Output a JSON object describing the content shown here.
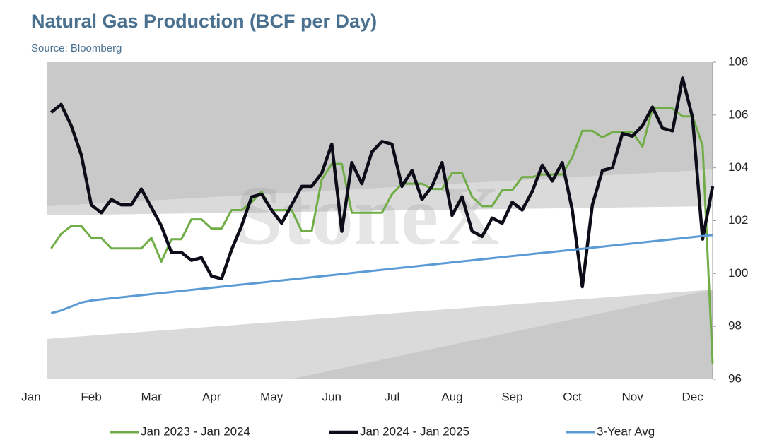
{
  "chart_data": {
    "type": "line",
    "title": "Natural Gas Production (BCF per Day)",
    "subtitle": "Source: Bloomberg",
    "watermark": "StoneX",
    "categories": [
      "Jan",
      null,
      null,
      null,
      null,
      null,
      "Feb",
      null,
      null,
      null,
      null,
      null,
      "Mar",
      null,
      null,
      null,
      null,
      null,
      "Apr",
      null,
      null,
      null,
      null,
      null,
      "May",
      null,
      null,
      null,
      null,
      null,
      "Jun",
      null,
      null,
      null,
      null,
      null,
      "Jul",
      null,
      null,
      null,
      null,
      null,
      "Aug",
      null,
      null,
      null,
      null,
      null,
      "Sep",
      null,
      null,
      null,
      null,
      null,
      "Oct",
      null,
      null,
      null,
      null,
      null,
      "Nov",
      null,
      null,
      null,
      null,
      null,
      "Dec",
      null,
      null
    ],
    "series": [
      {
        "name": "Jan 2023 - Jan 2024",
        "color": "#70ad47",
        "width": 3,
        "values": [
          null,
          null,
          100.95,
          101.5,
          101.8,
          101.8,
          101.35,
          101.35,
          100.95,
          100.95,
          100.95,
          100.95,
          101.35,
          100.45,
          101.3,
          101.3,
          102.05,
          102.05,
          101.7,
          101.7,
          102.4,
          102.4,
          102.7,
          103.1,
          102.4,
          102.4,
          102.4,
          101.6,
          101.6,
          103.55,
          104.15,
          104.15,
          102.3,
          102.3,
          102.3,
          102.3,
          103.0,
          103.4,
          103.4,
          103.4,
          103.2,
          103.2,
          103.8,
          103.8,
          102.9,
          102.55,
          102.55,
          103.15,
          103.15,
          103.65,
          103.65,
          103.75,
          103.75,
          103.75,
          104.4,
          105.4,
          105.4,
          105.15,
          105.35,
          105.35,
          105.35,
          104.8,
          106.25,
          106.25,
          106.25,
          105.95,
          105.95,
          104.85,
          96.6
        ]
      },
      {
        "name": "Jan 2024 - Jan 2025",
        "color": "#0d0d1a",
        "width": 4.5,
        "values": [
          null,
          null,
          106.1,
          106.4,
          105.6,
          104.5,
          102.6,
          102.3,
          102.8,
          102.6,
          102.6,
          103.2,
          102.5,
          101.8,
          100.8,
          100.8,
          100.5,
          100.6,
          99.9,
          99.8,
          100.9,
          101.8,
          102.9,
          103.0,
          102.4,
          101.9,
          102.6,
          103.3,
          103.3,
          103.8,
          104.9,
          101.6,
          104.2,
          103.4,
          104.6,
          105.0,
          104.9,
          103.3,
          103.9,
          102.8,
          103.3,
          104.2,
          102.2,
          102.9,
          101.6,
          101.4,
          102.1,
          101.9,
          102.7,
          102.4,
          103.1,
          104.1,
          103.5,
          104.2,
          102.4,
          99.5,
          102.6,
          103.9,
          104.0,
          105.3,
          105.2,
          105.6,
          106.3,
          105.5,
          105.4,
          107.4,
          105.9,
          101.3,
          103.3
        ]
      },
      {
        "name": "3-Year Avg",
        "color": "#5b9bd5",
        "width": 3,
        "values": [
          null,
          null,
          98.5,
          98.6,
          98.75,
          98.9,
          98.98,
          99.02,
          99.06,
          99.1,
          99.14,
          99.18,
          99.22,
          99.26,
          99.3,
          99.34,
          99.38,
          99.42,
          99.46,
          99.5,
          99.54,
          99.58,
          99.62,
          99.66,
          99.7,
          99.74,
          99.78,
          99.82,
          99.86,
          99.9,
          99.94,
          99.98,
          100.02,
          100.06,
          100.1,
          100.14,
          100.18,
          100.22,
          100.26,
          100.3,
          100.34,
          100.38,
          100.42,
          100.46,
          100.5,
          100.54,
          100.58,
          100.62,
          100.66,
          100.7,
          100.74,
          100.78,
          100.82,
          100.86,
          100.9,
          100.94,
          100.98,
          101.02,
          101.06,
          101.1,
          101.14,
          101.18,
          101.22,
          101.26,
          101.3,
          101.34,
          101.38,
          101.42,
          101.46
        ]
      }
    ],
    "ylim": [
      96,
      108
    ],
    "yticks": [
      96,
      98,
      100,
      102,
      104,
      106,
      108
    ],
    "yaxis_side": "right",
    "legend": "bottom"
  }
}
